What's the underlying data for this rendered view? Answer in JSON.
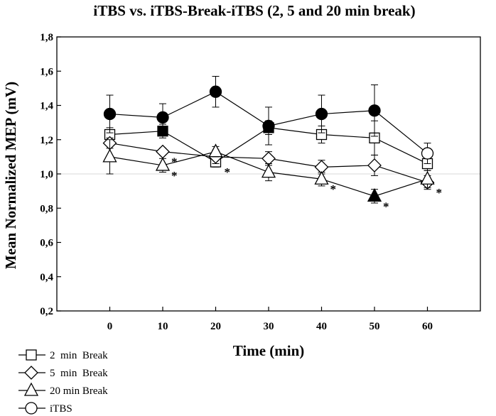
{
  "chart_data": {
    "type": "line",
    "title": "iTBS vs. iTBS-Break-iTBS (2, 5 and 20 min break)",
    "xlabel": "Time (min)",
    "ylabel": "Mean Normalized MEP (mV)",
    "x": [
      0,
      10,
      20,
      30,
      40,
      50,
      60
    ],
    "x_tick_labels": [
      "0",
      "10",
      "20",
      "30",
      "40",
      "50",
      "60"
    ],
    "y_tick_labels": [
      "0,2",
      "0,4",
      "0,6",
      "0,8",
      "1,0",
      "1,2",
      "1,4",
      "1,6",
      "1,8"
    ],
    "y_ticks": [
      0.2,
      0.4,
      0.6,
      0.8,
      1.0,
      1.2,
      1.4,
      1.6,
      1.8
    ],
    "xlim": [
      -10,
      70
    ],
    "ylim": [
      0.2,
      1.8
    ],
    "reference_line": 1.0,
    "grid": false,
    "legend_position": "bottom-left",
    "series": [
      {
        "name": "2  min  Break",
        "marker": "square",
        "values": [
          1.23,
          1.25,
          1.07,
          1.27,
          1.23,
          1.21,
          1.06
        ],
        "errors": [
          0.04,
          0.04,
          0.03,
          0.04,
          0.05,
          0.1,
          0.04
        ],
        "filled": [
          false,
          true,
          false,
          true,
          false,
          false,
          false
        ]
      },
      {
        "name": "5  min  Break",
        "marker": "diamond",
        "values": [
          1.18,
          1.13,
          1.1,
          1.09,
          1.04,
          1.05,
          0.95
        ],
        "errors": [
          0.03,
          0.02,
          0.04,
          0.04,
          0.04,
          0.06,
          0.04
        ],
        "filled": [
          false,
          false,
          false,
          false,
          false,
          false,
          false
        ]
      },
      {
        "name": "20 min Break",
        "marker": "triangle",
        "values": [
          1.1,
          1.05,
          1.13,
          1.01,
          0.97,
          0.87,
          0.97
        ],
        "errors": [
          0.1,
          0.04,
          0.03,
          0.05,
          0.04,
          0.04,
          0.05
        ],
        "filled": [
          false,
          false,
          false,
          false,
          false,
          true,
          false
        ]
      },
      {
        "name": "iTBS",
        "marker": "circle",
        "values": [
          1.35,
          1.33,
          1.48,
          1.28,
          1.35,
          1.37,
          1.12
        ],
        "errors": [
          0.11,
          0.08,
          0.09,
          0.11,
          0.11,
          0.15,
          0.06
        ],
        "filled": [
          true,
          true,
          true,
          true,
          true,
          true,
          false
        ]
      }
    ],
    "annotations": [
      {
        "text": "*",
        "x": 10,
        "y": 1.13
      },
      {
        "text": "*",
        "x": 10,
        "y": 1.05
      },
      {
        "text": "*",
        "x": 20,
        "y": 1.07
      },
      {
        "text": "*",
        "x": 40,
        "y": 0.97
      },
      {
        "text": "*",
        "x": 50,
        "y": 0.87
      },
      {
        "text": "*",
        "x": 60,
        "y": 0.95
      }
    ]
  }
}
